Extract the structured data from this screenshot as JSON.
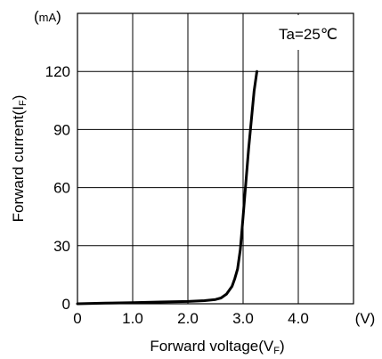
{
  "chart_data": {
    "type": "line",
    "xlabel": "Forward voltage(VF)",
    "xlabel_main": "Forward voltage(V",
    "xlabel_sub": "F",
    "xlabel_close": ")",
    "ylabel": "Forward current(IF)",
    "ylabel_main": "Forward current(I",
    "ylabel_sub": "F",
    "ylabel_close": ")",
    "x_unit": "(V)",
    "y_unit": "(mA)",
    "y_unit_open": "(",
    "y_unit_mid": "mA",
    "y_unit_close": ")",
    "annotation": "Ta=25℃",
    "xlim": [
      0,
      5
    ],
    "ylim": [
      0,
      150
    ],
    "grid": true,
    "x_ticks": [
      0,
      1,
      2,
      3,
      4
    ],
    "x_tick_labels": [
      "0",
      "1.0",
      "2.0",
      "3.0",
      "4.0"
    ],
    "y_ticks": [
      0,
      30,
      60,
      90,
      120
    ],
    "y_tick_labels": [
      "0",
      "30",
      "60",
      "90",
      "120"
    ],
    "series": [
      {
        "x": [
          0,
          0.5,
          1.0,
          1.5,
          2.0,
          2.3,
          2.5,
          2.6,
          2.7,
          2.8,
          2.85,
          2.9,
          2.95,
          3.0,
          3.1,
          3.2,
          3.25
        ],
        "y": [
          0,
          0.3,
          0.6,
          0.9,
          1.2,
          1.6,
          2.2,
          3.0,
          5.0,
          9.0,
          13.0,
          18.0,
          28.0,
          45.0,
          80.0,
          110.0,
          120.0
        ]
      }
    ]
  }
}
